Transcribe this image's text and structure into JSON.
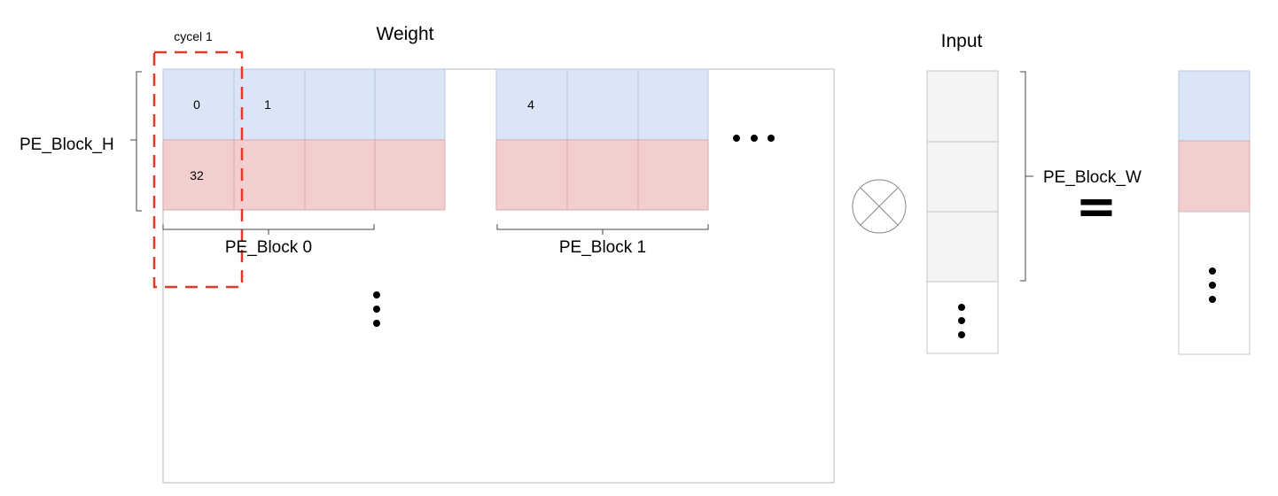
{
  "labels": {
    "weight": "Weight",
    "input": "Input",
    "cycle": "cycel 1",
    "pe_block_h": "PE_Block_H",
    "pe_block_w": "PE_Block_W",
    "pe_block_0": "PE_Block 0",
    "pe_block_1": "PE_Block 1",
    "equals": "="
  },
  "cells": {
    "block0_top_0": "0",
    "block0_top_1": "1",
    "block0_bottom_0": "32",
    "block1_top_0": "4"
  },
  "colors": {
    "blue": "#dae6f8",
    "pink": "#f2cfce",
    "gray": "#f4f4f4",
    "dashed": "#e0392b",
    "border": "#b9b9b9"
  },
  "icons": {
    "multiply": "circled-times-icon",
    "ellipsis": "ellipsis-icon"
  }
}
